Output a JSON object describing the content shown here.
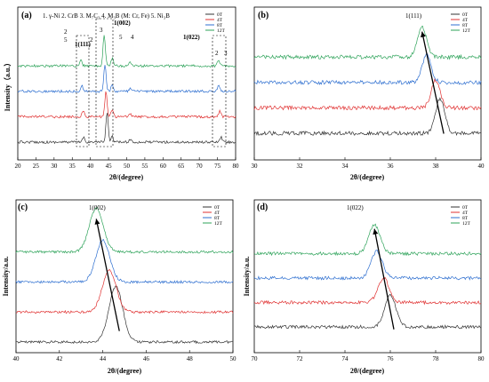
{
  "colors": {
    "0T": "#333333",
    "4T": "#e03030",
    "8T": "#2e6fd0",
    "12T": "#2ea35a"
  },
  "chart_data": [
    {
      "id": "a",
      "type": "line",
      "panel_label": "(a)",
      "xlabel": "2θ/(degree)",
      "ylabel": "Intensity（a.u.）",
      "xlim": [
        20,
        80
      ],
      "xticks": [
        20,
        25,
        30,
        35,
        40,
        45,
        50,
        55,
        60,
        65,
        70,
        75,
        80
      ],
      "legend": [
        "0T",
        "4T",
        "8T",
        "12T"
      ],
      "legend_position": "top-right",
      "phase_legend": "1. γ-Ni  2. CrB  3. M₇C₃  4. M₃B (M: Cr, Fe)  5. Ni₃B",
      "annotations": [
        "1(111)",
        "1(002)",
        "1(022)",
        "2",
        "5",
        "2",
        "3",
        "5",
        "4",
        "2",
        "3"
      ],
      "series": [
        {
          "name": "0T",
          "offset": 0,
          "peaks": [
            [
              38.1,
              0.25
            ],
            [
              44.6,
              1.5
            ],
            [
              46.0,
              0.3
            ],
            [
              51.0,
              0.15
            ],
            [
              76.0,
              0.25
            ]
          ]
        },
        {
          "name": "4T",
          "offset": 1.3,
          "peaks": [
            [
              38.0,
              0.3
            ],
            [
              44.3,
              1.3
            ],
            [
              46.0,
              0.35
            ],
            [
              51.0,
              0.15
            ],
            [
              75.7,
              0.3
            ]
          ]
        },
        {
          "name": "8T",
          "offset": 2.6,
          "peaks": [
            [
              37.6,
              0.3
            ],
            [
              44.0,
              1.4
            ],
            [
              46.0,
              0.35
            ],
            [
              51.0,
              0.15
            ],
            [
              75.4,
              0.3
            ]
          ]
        },
        {
          "name": "12T",
          "offset": 3.9,
          "peaks": [
            [
              37.4,
              0.3
            ],
            [
              43.8,
              1.6
            ],
            [
              46.0,
              0.4
            ],
            [
              50.9,
              0.2
            ],
            [
              75.3,
              0.35
            ]
          ]
        }
      ]
    },
    {
      "id": "b",
      "type": "line",
      "panel_label": "(b)",
      "xlabel": "2θ/(degree)",
      "ylabel": "",
      "xlim": [
        30,
        40
      ],
      "xticks": [
        30,
        32,
        34,
        36,
        38,
        40
      ],
      "legend": [
        "0T",
        "4T",
        "8T",
        "12T"
      ],
      "legend_position": "top-right",
      "annotations": [
        "1(111)"
      ],
      "series": [
        {
          "name": "0T",
          "offset": 0,
          "peak": [
            38.2,
            1.5
          ],
          "arrow_y": 0.4
        },
        {
          "name": "4T",
          "offset": 1.1,
          "peak": [
            38.0,
            1.2
          ],
          "arrow_y": 0.4
        },
        {
          "name": "8T",
          "offset": 2.2,
          "peak": [
            37.6,
            1.2
          ],
          "arrow_y": 0.4
        },
        {
          "name": "12T",
          "offset": 3.3,
          "peak": [
            37.4,
            1.3
          ],
          "arrow_y": 0.4
        }
      ]
    },
    {
      "id": "c",
      "type": "line",
      "panel_label": "(c)",
      "xlabel": "2θ/(degree)",
      "ylabel": "Intensity/a.u.",
      "xlim": [
        40,
        50
      ],
      "xticks": [
        40,
        42,
        44,
        46,
        48,
        50
      ],
      "legend": [
        "0T",
        "4T",
        "8T",
        "12T"
      ],
      "legend_position": "top-right",
      "annotations": [
        "1(002)"
      ],
      "series": [
        {
          "name": "0T",
          "offset": 0,
          "peak": [
            44.6,
            2.4
          ],
          "arrow_y": 0.4
        },
        {
          "name": "4T",
          "offset": 1.3,
          "peak": [
            44.3,
            1.8
          ],
          "arrow_y": 0.4
        },
        {
          "name": "8T",
          "offset": 2.6,
          "peak": [
            44.0,
            1.8
          ],
          "arrow_y": 0.4
        },
        {
          "name": "12T",
          "offset": 3.9,
          "peak": [
            43.7,
            1.9
          ],
          "arrow_y": 0.4
        }
      ]
    },
    {
      "id": "d",
      "type": "line",
      "panel_label": "(d)",
      "xlabel": "2θ/(degree)",
      "ylabel": "Intensity/a.u.",
      "xlim": [
        70,
        80
      ],
      "xticks": [
        70,
        72,
        74,
        76,
        78,
        80
      ],
      "legend": [
        "0T",
        "4T",
        "8T",
        "12T"
      ],
      "legend_position": "top-right",
      "annotations": [
        "1(022)"
      ],
      "series": [
        {
          "name": "0T",
          "offset": 0,
          "peak": [
            76.0,
            1.4
          ],
          "arrow_y": 0.4
        },
        {
          "name": "4T",
          "offset": 1.1,
          "peak": [
            75.7,
            1.1
          ],
          "arrow_y": 0.4
        },
        {
          "name": "8T",
          "offset": 2.2,
          "peak": [
            75.4,
            1.2
          ],
          "arrow_y": 0.4
        },
        {
          "name": "12T",
          "offset": 3.3,
          "peak": [
            75.3,
            1.3
          ],
          "arrow_y": 0.4
        }
      ]
    }
  ]
}
